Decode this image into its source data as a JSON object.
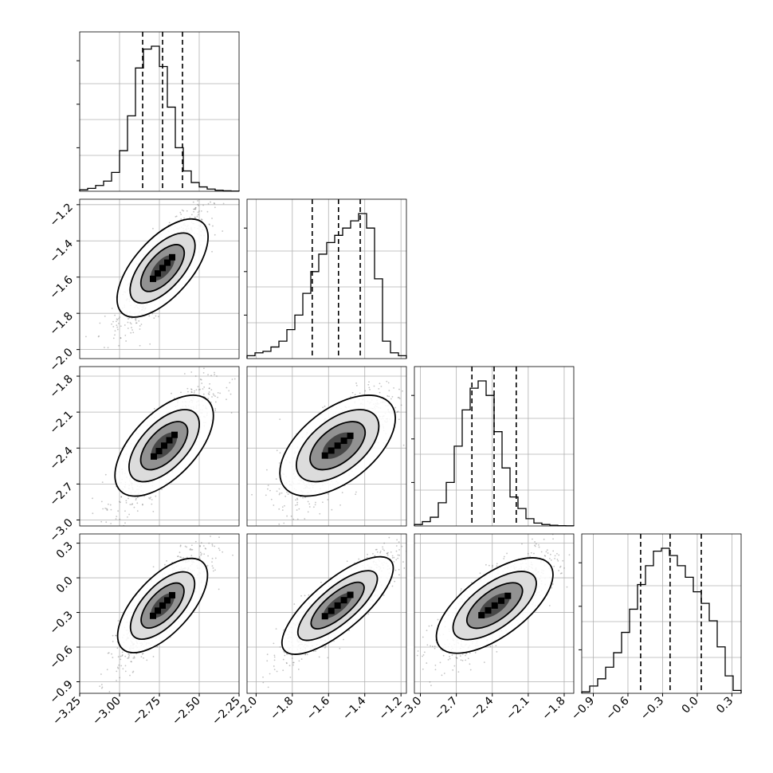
{
  "chart_data": {
    "type": "corner",
    "title": "",
    "params": [
      {
        "ticks": [
          -3.25,
          -3.0,
          -2.75,
          -2.5,
          -2.25
        ],
        "tick_labels": [
          "−3.25",
          "−3.00",
          "−2.75",
          "−2.50",
          "−2.25"
        ],
        "range": [
          -3.25,
          -2.25
        ]
      },
      {
        "ticks": [
          -2.0,
          -1.8,
          -1.6,
          -1.4,
          -1.2
        ],
        "tick_labels": [
          "−2.0",
          "−1.8",
          "−1.6",
          "−1.4",
          "−1.2"
        ],
        "range": [
          -2.05,
          -1.17
        ]
      },
      {
        "ticks": [
          -3.0,
          -2.7,
          -2.4,
          -2.1,
          -1.8
        ],
        "tick_labels": [
          "−3.0",
          "−2.7",
          "−2.4",
          "−2.1",
          "−1.8"
        ],
        "range": [
          -3.05,
          -1.72
        ]
      },
      {
        "ticks": [
          -0.9,
          -0.6,
          -0.3,
          0.0,
          0.3
        ],
        "tick_labels": [
          "−0.9",
          "−0.6",
          "−0.3",
          "0.0",
          "0.3"
        ],
        "range": [
          -1.0,
          0.38
        ]
      }
    ],
    "histograms": [
      {
        "edges_range": [
          -3.25,
          -2.25
        ],
        "quantiles": [
          -2.855,
          -2.73,
          -2.605
        ],
        "counts": [
          0.01,
          0.02,
          0.04,
          0.07,
          0.13,
          0.28,
          0.52,
          0.85,
          0.98,
          1.0,
          0.86,
          0.58,
          0.3,
          0.14,
          0.06,
          0.03,
          0.015,
          0.007,
          0.003,
          0.001
        ]
      },
      {
        "edges_range": [
          -2.05,
          -1.17
        ],
        "quantiles": [
          -1.69,
          -1.545,
          -1.425
        ],
        "counts": [
          0.02,
          0.04,
          0.05,
          0.08,
          0.12,
          0.2,
          0.3,
          0.45,
          0.6,
          0.72,
          0.8,
          0.85,
          0.9,
          0.95,
          1.0,
          0.9,
          0.55,
          0.12,
          0.04,
          0.02
        ]
      },
      {
        "edges_range": [
          -3.05,
          -1.72
        ],
        "quantiles": [
          -2.57,
          -2.385,
          -2.2
        ],
        "counts": [
          0.01,
          0.03,
          0.06,
          0.16,
          0.3,
          0.55,
          0.8,
          0.95,
          1.0,
          0.9,
          0.65,
          0.4,
          0.2,
          0.12,
          0.05,
          0.02,
          0.01,
          0.005,
          0.002,
          0.001
        ]
      },
      {
        "edges_range": [
          -1.0,
          0.38
        ],
        "quantiles": [
          -0.49,
          -0.235,
          0.035
        ],
        "counts": [
          0.01,
          0.05,
          0.1,
          0.18,
          0.28,
          0.42,
          0.58,
          0.75,
          0.88,
          0.98,
          1.0,
          0.95,
          0.88,
          0.8,
          0.7,
          0.62,
          0.5,
          0.32,
          0.12,
          0.02
        ]
      }
    ],
    "pairs": [
      {
        "x": 0,
        "y": 1,
        "center": [
          -2.73,
          -1.55
        ],
        "spread": [
          0.12,
          0.14
        ],
        "corr": 0.85
      },
      {
        "x": 0,
        "y": 2,
        "center": [
          -2.72,
          -2.38
        ],
        "spread": [
          0.13,
          0.22
        ],
        "corr": 0.82
      },
      {
        "x": 1,
        "y": 2,
        "center": [
          -1.55,
          -2.38
        ],
        "spread": [
          0.14,
          0.22
        ],
        "corr": 0.75
      },
      {
        "x": 0,
        "y": 3,
        "center": [
          -2.73,
          -0.24
        ],
        "spread": [
          0.12,
          0.21
        ],
        "corr": 0.85
      },
      {
        "x": 1,
        "y": 3,
        "center": [
          -1.55,
          -0.24
        ],
        "spread": [
          0.14,
          0.21
        ],
        "corr": 0.88
      },
      {
        "x": 2,
        "y": 3,
        "center": [
          -2.38,
          -0.24
        ],
        "spread": [
          0.22,
          0.21
        ],
        "corr": 0.8
      }
    ],
    "grid": true,
    "legend": "none"
  }
}
